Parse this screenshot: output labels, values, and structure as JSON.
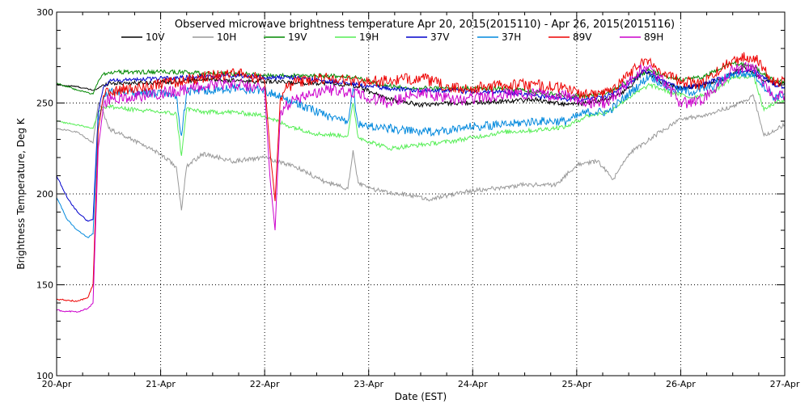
{
  "chart_data": {
    "type": "line",
    "title": "Observed microwave brightness temperature Apr 20, 2015(2015110) - Apr 26, 2015(2015116)",
    "xlabel": "Date (EST)",
    "ylabel": "Brightness Temperature, Deg K",
    "xlim": [
      0,
      7
    ],
    "ylim": [
      100,
      300
    ],
    "x_tick_values": [
      0,
      1,
      2,
      3,
      4,
      5,
      6,
      7
    ],
    "x_tick_labels": [
      "20-Apr",
      "21-Apr",
      "22-Apr",
      "23-Apr",
      "24-Apr",
      "25-Apr",
      "26-Apr",
      "27-Apr"
    ],
    "y_ticks": [
      100,
      150,
      200,
      250,
      300
    ],
    "grid": true,
    "legend_position": "top",
    "x_unit": "days from 20-Apr 00:00",
    "series": [
      {
        "name": "10V",
        "color": "#000000",
        "x": [
          0,
          0.2,
          0.35,
          0.4,
          0.45,
          0.5,
          0.8,
          1.2,
          1.4,
          1.8,
          2.0,
          2.3,
          2.6,
          2.9,
          3.2,
          3.5,
          3.8,
          4.0,
          4.3,
          4.6,
          4.9,
          5.1,
          5.3,
          5.5,
          5.65,
          5.8,
          6.0,
          6.2,
          6.4,
          6.6,
          6.8,
          7.0
        ],
        "y": [
          260,
          259,
          257,
          258,
          260,
          261,
          261,
          262,
          263,
          262,
          262,
          261,
          261,
          259,
          252,
          249,
          250,
          250,
          251,
          252,
          249,
          250,
          252,
          258,
          268,
          262,
          258,
          260,
          263,
          270,
          262,
          260
        ]
      },
      {
        "name": "10H",
        "color": "#999999",
        "x": [
          0,
          0.2,
          0.35,
          0.4,
          0.45,
          0.5,
          0.8,
          1.0,
          1.15,
          1.2,
          1.25,
          1.4,
          1.7,
          2.0,
          2.3,
          2.6,
          2.8,
          2.85,
          2.9,
          3.0,
          3.3,
          3.6,
          3.9,
          4.2,
          4.5,
          4.8,
          5.0,
          5.2,
          5.35,
          5.5,
          5.8,
          6.0,
          6.2,
          6.5,
          6.7,
          6.8,
          7.0
        ],
        "y": [
          236,
          234,
          228,
          250,
          245,
          236,
          228,
          222,
          215,
          191,
          215,
          222,
          218,
          220,
          215,
          206,
          203,
          224,
          206,
          203,
          200,
          197,
          201,
          203,
          205,
          205,
          216,
          218,
          208,
          222,
          234,
          241,
          243,
          248,
          254,
          232,
          238
        ]
      },
      {
        "name": "19V",
        "color": "#008800",
        "x": [
          0,
          0.2,
          0.35,
          0.4,
          0.45,
          0.5,
          0.8,
          1.2,
          1.5,
          1.8,
          2.0,
          2.3,
          2.6,
          2.9,
          3.1,
          3.4,
          3.7,
          4.0,
          4.3,
          4.6,
          4.9,
          5.1,
          5.3,
          5.5,
          5.7,
          5.9,
          6.0,
          6.2,
          6.5,
          6.7,
          6.9,
          7.0
        ],
        "y": [
          261,
          257,
          255,
          262,
          266,
          267,
          267,
          267,
          266,
          266,
          265,
          265,
          265,
          264,
          260,
          258,
          258,
          258,
          258,
          256,
          254,
          254,
          256,
          262,
          268,
          264,
          263,
          264,
          272,
          270,
          262,
          262
        ]
      },
      {
        "name": "19H",
        "color": "#55ee55",
        "x": [
          0,
          0.2,
          0.35,
          0.4,
          0.45,
          0.5,
          0.8,
          1.0,
          1.15,
          1.2,
          1.25,
          1.4,
          1.7,
          2.0,
          2.2,
          2.5,
          2.8,
          2.85,
          2.9,
          3.2,
          3.5,
          3.8,
          4.0,
          4.3,
          4.6,
          4.9,
          5.1,
          5.3,
          5.5,
          5.7,
          5.9,
          6.1,
          6.3,
          6.5,
          6.7,
          6.8,
          6.9,
          7.0
        ],
        "y": [
          240,
          238,
          236,
          245,
          248,
          248,
          246,
          245,
          244,
          221,
          247,
          245,
          245,
          243,
          238,
          233,
          232,
          250,
          231,
          225,
          227,
          229,
          231,
          234,
          235,
          237,
          243,
          245,
          253,
          260,
          256,
          253,
          256,
          264,
          265,
          246,
          250,
          251
        ]
      },
      {
        "name": "37V",
        "color": "#0000cc",
        "x": [
          0,
          0.1,
          0.2,
          0.3,
          0.35,
          0.4,
          0.45,
          0.5,
          0.8,
          1.2,
          1.5,
          1.8,
          2.0,
          2.3,
          2.6,
          2.9,
          3.2,
          3.5,
          3.8,
          4.0,
          4.3,
          4.6,
          4.9,
          5.1,
          5.3,
          5.5,
          5.65,
          5.8,
          6.0,
          6.2,
          6.5,
          6.7,
          6.9,
          7.0
        ],
        "y": [
          210,
          198,
          190,
          185,
          186,
          245,
          259,
          262,
          263,
          264,
          265,
          265,
          264,
          264,
          262,
          260,
          258,
          257,
          257,
          256,
          256,
          254,
          252,
          252,
          254,
          260,
          268,
          263,
          258,
          260,
          266,
          268,
          260,
          259
        ]
      },
      {
        "name": "37H",
        "color": "#0088dd",
        "x": [
          0,
          0.1,
          0.2,
          0.3,
          0.35,
          0.4,
          0.45,
          0.5,
          0.8,
          1.0,
          1.15,
          1.2,
          1.25,
          1.4,
          1.7,
          2.0,
          2.3,
          2.6,
          2.8,
          2.85,
          2.9,
          3.2,
          3.5,
          3.8,
          4.0,
          4.3,
          4.6,
          4.9,
          5.1,
          5.3,
          5.5,
          5.7,
          5.9,
          6.1,
          6.3,
          6.5,
          6.7,
          6.9,
          7.0
        ],
        "y": [
          198,
          186,
          180,
          176,
          178,
          240,
          252,
          256,
          256,
          255,
          254,
          232,
          256,
          257,
          258,
          257,
          250,
          243,
          240,
          258,
          238,
          236,
          234,
          235,
          237,
          238,
          240,
          240,
          245,
          245,
          255,
          265,
          258,
          256,
          259,
          266,
          266,
          253,
          255
        ]
      },
      {
        "name": "89V",
        "color": "#ee0000",
        "x": [
          0,
          0.2,
          0.3,
          0.35,
          0.4,
          0.45,
          0.5,
          0.8,
          1.2,
          1.5,
          1.8,
          2.0,
          2.05,
          2.1,
          2.15,
          2.2,
          2.3,
          2.6,
          2.9,
          3.2,
          3.5,
          3.8,
          4.0,
          4.3,
          4.6,
          4.9,
          5.1,
          5.3,
          5.5,
          5.65,
          5.8,
          6.0,
          6.2,
          6.5,
          6.7,
          6.9,
          7.0
        ],
        "y": [
          142,
          141,
          143,
          150,
          235,
          254,
          256,
          259,
          262,
          265,
          266,
          262,
          225,
          196,
          252,
          258,
          261,
          264,
          262,
          262,
          264,
          258,
          258,
          260,
          260,
          258,
          254,
          256,
          266,
          274,
          268,
          262,
          260,
          274,
          276,
          262,
          261
        ]
      },
      {
        "name": "89H",
        "color": "#cc00cc",
        "x": [
          0,
          0.2,
          0.3,
          0.35,
          0.4,
          0.45,
          0.5,
          0.8,
          1.2,
          1.5,
          1.8,
          2.0,
          2.05,
          2.1,
          2.15,
          2.2,
          2.3,
          2.6,
          2.9,
          3.2,
          3.5,
          3.8,
          4.0,
          4.3,
          4.6,
          4.9,
          5.1,
          5.3,
          5.5,
          5.65,
          5.8,
          6.0,
          6.2,
          6.5,
          6.7,
          6.9,
          7.0
        ],
        "y": [
          136,
          135,
          137,
          140,
          225,
          248,
          252,
          254,
          257,
          260,
          260,
          257,
          210,
          180,
          244,
          248,
          252,
          257,
          255,
          250,
          256,
          252,
          252,
          255,
          255,
          254,
          250,
          250,
          262,
          270,
          264,
          250,
          251,
          268,
          270,
          253,
          254
        ]
      }
    ]
  }
}
